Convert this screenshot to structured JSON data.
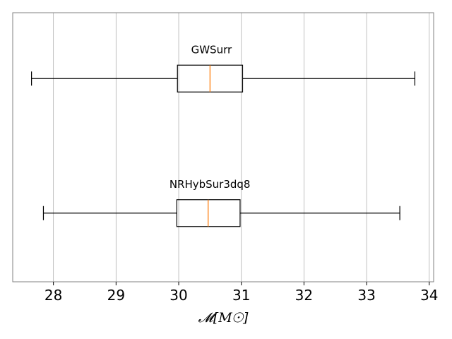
{
  "chart_data": {
    "type": "boxplot",
    "orientation": "horizontal",
    "xlabel": "𝓜[M☉]",
    "xlim": [
      27.35,
      34.07
    ],
    "xticks": [
      28,
      29,
      30,
      31,
      32,
      33,
      34
    ],
    "grid": "vertical",
    "colors": {
      "box": "#000000",
      "median": "#ff7f0e",
      "grid": "#b0b0b0",
      "frame": "#808080"
    },
    "series": [
      {
        "label": "GWSurr",
        "whisker_low": 27.65,
        "q1": 29.98,
        "median": 30.5,
        "q3": 31.02,
        "whisker_high": 33.77
      },
      {
        "label": "NRHybSur3dq8",
        "whisker_low": 27.84,
        "q1": 29.97,
        "median": 30.47,
        "q3": 30.98,
        "whisker_high": 33.53
      }
    ]
  }
}
